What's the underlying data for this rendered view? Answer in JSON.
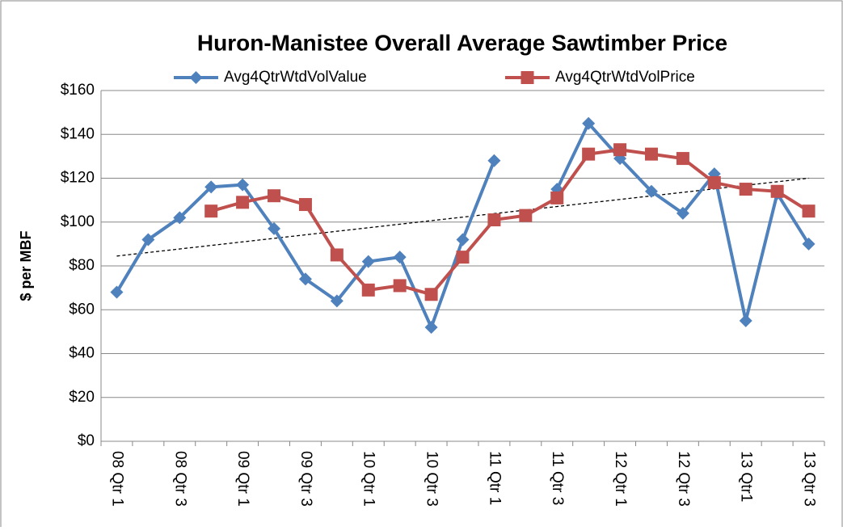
{
  "chart_data": {
    "type": "line",
    "title": "Huron-Manistee Overall Average Sawtimber Price",
    "y_label": "$ per MBF",
    "categories": [
      "08 Qtr 1",
      null,
      "08 Qtr 3",
      null,
      "09 Qtr 1",
      null,
      "09 Qtr 3",
      null,
      "10 Qtr 1",
      null,
      "10 Qtr 3",
      null,
      "11 Qtr 1",
      null,
      "11 Qtr 3",
      null,
      "12 Qtr 1",
      null,
      "12 Qtr 3",
      null,
      "13 Qtr1",
      null,
      "13 Qtr 3"
    ],
    "series": [
      {
        "name": "Avg4QtrWtdVolValue",
        "color": "#4f81bd",
        "marker": "diamond",
        "values": [
          68,
          92,
          102,
          116,
          117,
          97,
          74,
          64,
          82,
          84,
          52,
          92,
          128,
          null,
          115,
          145,
          129,
          114,
          104,
          122,
          55,
          113,
          90
        ]
      },
      {
        "name": "Avg4QtrWtdVolPrice",
        "color": "#c0504d",
        "marker": "square",
        "values": [
          null,
          null,
          null,
          105,
          109,
          112,
          108,
          85,
          69,
          71,
          67,
          84,
          101,
          103,
          111,
          131,
          133,
          131,
          129,
          118,
          115,
          114,
          105
        ]
      }
    ],
    "trendline": {
      "start": 84.5,
      "end": 120
    },
    "ylim": [
      0,
      160
    ],
    "yticks": [
      {
        "value": 0,
        "label": "$0"
      },
      {
        "value": 20,
        "label": "$20"
      },
      {
        "value": 40,
        "label": "$40"
      },
      {
        "value": 60,
        "label": "$60"
      },
      {
        "value": 80,
        "label": "$80"
      },
      {
        "value": 100,
        "label": "$100"
      },
      {
        "value": 120,
        "label": "$120"
      },
      {
        "value": 140,
        "label": "$140"
      },
      {
        "value": 160,
        "label": "$160"
      }
    ],
    "grid": true,
    "legend": "top"
  }
}
